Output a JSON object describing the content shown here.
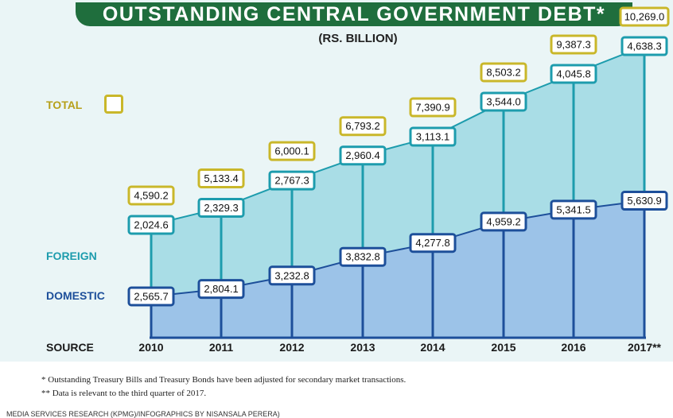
{
  "header": {
    "title": "OUTSTANDING CENTRAL GOVERNMENT DEBT*",
    "subtitle": "(RS. BILLION)"
  },
  "legend": {
    "total": "TOTAL",
    "foreign": "FOREIGN",
    "domestic": "DOMESTIC",
    "source": "SOURCE"
  },
  "colors": {
    "total": "#c9b72a",
    "foreign": "#1d9cad",
    "domestic": "#1d4f9a",
    "foreign_fill": "#a9dde6",
    "domestic_fill": "#9cc3e8",
    "title_bg": "#1f6e3d"
  },
  "chart_data": {
    "type": "area",
    "title": "OUTSTANDING CENTRAL GOVERNMENT DEBT*",
    "subtitle": "(RS. BILLION)",
    "categories": [
      "2010",
      "2011",
      "2012",
      "2013",
      "2014",
      "2015",
      "2016",
      "2017**"
    ],
    "series": [
      {
        "name": "DOMESTIC",
        "values": [
          2565.7,
          2804.1,
          3232.8,
          3832.8,
          4277.8,
          4959.2,
          5341.5,
          5630.9
        ],
        "labels": [
          "2,565.7",
          "2,804.1",
          "3,232.8",
          "3,832.8",
          "4,277.8",
          "4,959.2",
          "5,341.5",
          "5,630.9"
        ]
      },
      {
        "name": "FOREIGN",
        "values": [
          2024.6,
          2329.3,
          2767.3,
          2960.4,
          3113.1,
          3544.0,
          4045.8,
          4638.3
        ],
        "labels": [
          "2,024.6",
          "2,329.3",
          "2,767.3",
          "2,960.4",
          "3,113.1",
          "3,544.0",
          "4,045.8",
          "4,638.3"
        ]
      },
      {
        "name": "TOTAL",
        "values": [
          4590.2,
          5133.4,
          6000.1,
          6793.2,
          7390.9,
          8503.2,
          9387.3,
          10269.0
        ],
        "labels": [
          "4,590.2",
          "5,133.4",
          "6,000.1",
          "6,793.2",
          "7,390.9",
          "8,503.2",
          "9,387.3",
          "10,269.0"
        ]
      }
    ],
    "stacked": true
  },
  "footnotes": [
    "*   Outstanding Treasury Bills and Treasury Bonds have been adjusted for secondary market transactions.",
    "** Data is relevant to the third quarter of 2017."
  ],
  "credit": "MEDIA SERVICES RESEARCH (KPMG)/INFOGRAPHICS BY NISANSALA PERERA)"
}
